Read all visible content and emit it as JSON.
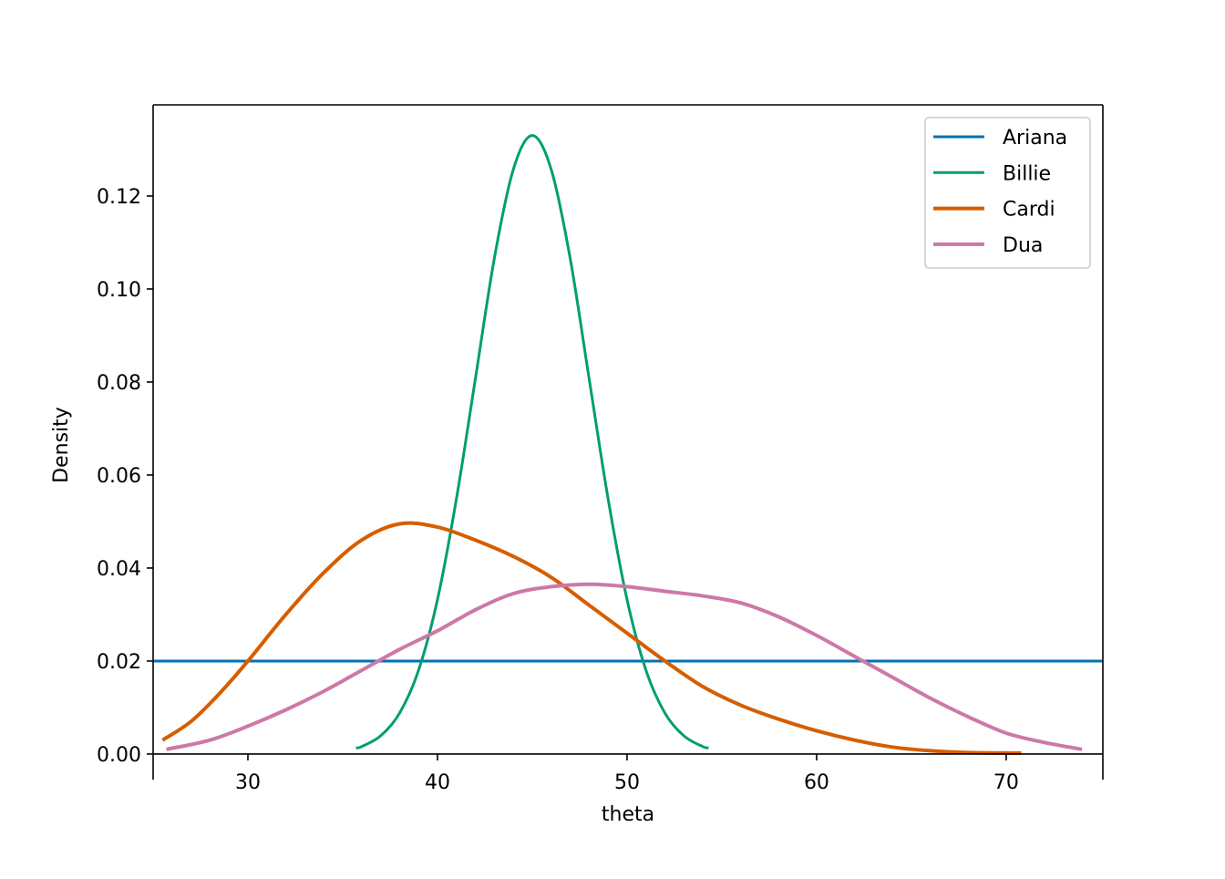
{
  "chart_data": {
    "type": "line",
    "title": "",
    "xlabel": "theta",
    "ylabel": "Density",
    "xlim": [
      25,
      75.1
    ],
    "ylim": [
      -0.0055,
      0.1396
    ],
    "xticks": [
      30,
      40,
      50,
      60,
      70
    ],
    "xtick_labels": [
      "30",
      "40",
      "50",
      "60",
      "70"
    ],
    "yticks": [
      0,
      0.02,
      0.04,
      0.06,
      0.08,
      0.1,
      0.12
    ],
    "ytick_labels": [
      "0.00",
      "0.02",
      "0.04",
      "0.06",
      "0.08",
      "0.10",
      "0.12"
    ],
    "grid": false,
    "legend": "top-right",
    "series": [
      {
        "name": "Ariana",
        "color": "#0072b2",
        "kind": "hline",
        "y": 0.02
      },
      {
        "name": "Billie",
        "color": "#009e73",
        "x": [
          35.7,
          36,
          37,
          38,
          39,
          40,
          41,
          42,
          43,
          44,
          45,
          46,
          47,
          48,
          49,
          50,
          51,
          52,
          53,
          54,
          54.3
        ],
        "y": [
          0.0013,
          0.0016,
          0.0039,
          0.0088,
          0.018,
          0.0332,
          0.0549,
          0.0807,
          0.1066,
          0.1257,
          0.133,
          0.1257,
          0.1066,
          0.0807,
          0.0549,
          0.0332,
          0.018,
          0.0088,
          0.0039,
          0.0016,
          0.0013
        ]
      },
      {
        "name": "Cardi",
        "color": "#d55e00",
        "x": [
          25.5,
          27,
          28.5,
          30,
          32,
          34,
          36,
          38,
          40,
          42,
          44,
          46,
          48,
          50,
          52,
          54,
          56,
          58,
          60,
          62,
          64,
          66,
          68,
          70.8
        ],
        "y": [
          0.003,
          0.007,
          0.013,
          0.02,
          0.03,
          0.039,
          0.046,
          0.0495,
          0.0488,
          0.046,
          0.0425,
          0.038,
          0.032,
          0.026,
          0.02,
          0.0145,
          0.0105,
          0.0075,
          0.005,
          0.003,
          0.0015,
          0.0007,
          0.0003,
          0.0002
        ]
      },
      {
        "name": "Dua",
        "color": "#cc79a7",
        "x": [
          25.7,
          28,
          30,
          32,
          34,
          36,
          38,
          40,
          42,
          44,
          46,
          48,
          50,
          52,
          54,
          56,
          58,
          60,
          62,
          64,
          66,
          68,
          70,
          72,
          74
        ],
        "y": [
          0.001,
          0.003,
          0.006,
          0.0095,
          0.0135,
          0.018,
          0.0225,
          0.0265,
          0.031,
          0.0345,
          0.036,
          0.0365,
          0.036,
          0.035,
          0.034,
          0.0325,
          0.0295,
          0.0255,
          0.021,
          0.0165,
          0.012,
          0.008,
          0.0045,
          0.0025,
          0.001
        ]
      }
    ]
  }
}
